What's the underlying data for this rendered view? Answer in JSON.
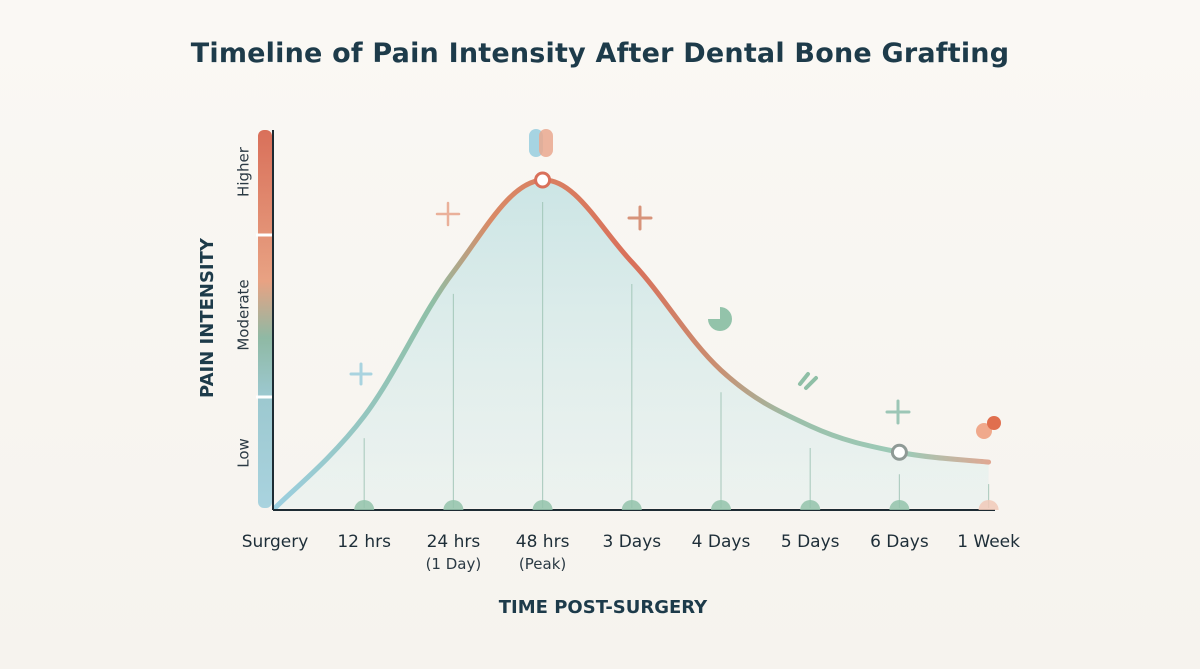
{
  "chart_data": {
    "type": "area",
    "title": "Timeline of Pain Intensity After Dental Bone Grafting",
    "xlabel": "TIME POST-SURGERY",
    "ylabel": "PAIN INTENSITY",
    "y_bands": [
      "Low",
      "Moderate",
      "Higher"
    ],
    "categories": [
      {
        "label": "Surgery",
        "sub": ""
      },
      {
        "label": "12 hrs",
        "sub": ""
      },
      {
        "label": "24 hrs",
        "sub": "(1 Day)"
      },
      {
        "label": "48 hrs",
        "sub": "(Peak)"
      },
      {
        "label": "3 Days",
        "sub": ""
      },
      {
        "label": "4 Days",
        "sub": ""
      },
      {
        "label": "5 Days",
        "sub": ""
      },
      {
        "label": "6 Days",
        "sub": ""
      },
      {
        "label": "1 Week",
        "sub": ""
      }
    ],
    "ylim": [
      0,
      1
    ],
    "values": [
      0.0,
      0.28,
      0.72,
      1.0,
      0.75,
      0.42,
      0.25,
      0.17,
      0.14
    ],
    "highlight_points": [
      3,
      7
    ],
    "grid": false,
    "colors": {
      "low": "#8fc8d6",
      "moderate": "#8fb9a4",
      "higher": "#d9705a",
      "fill": "#cde6e6",
      "axis": "#1d2b33",
      "marker": "#93c3aa"
    }
  }
}
